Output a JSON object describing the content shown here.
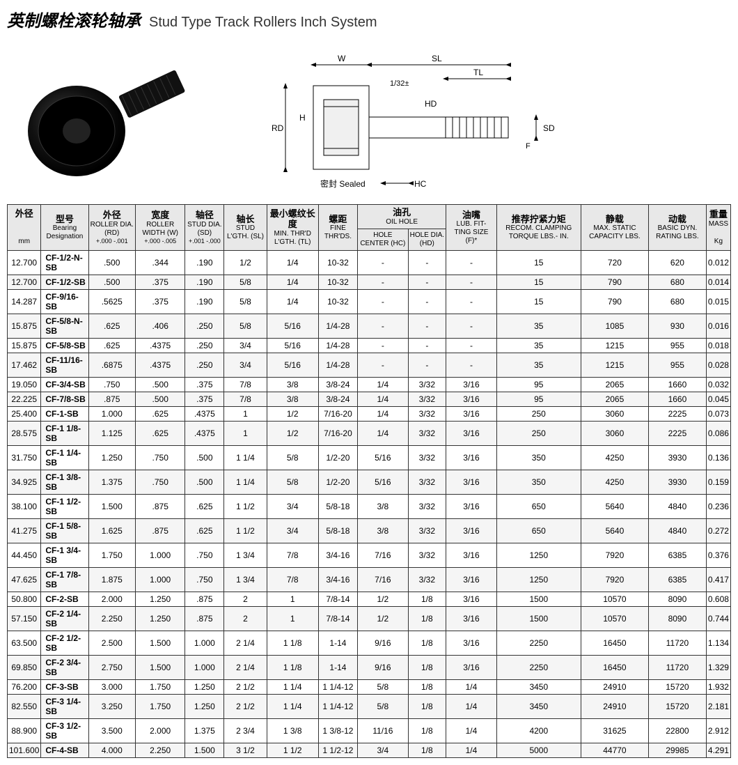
{
  "title": {
    "cn": "英制螺栓滚轮轴承",
    "en": "Stud Type Track Rollers Inch System"
  },
  "diagram_labels": {
    "W": "W",
    "SL": "SL",
    "TL": "TL",
    "HD": "HD",
    "SD": "SD",
    "F": "F",
    "RD": "RD",
    "H": "H",
    "HC": "HC",
    "gap": "1/32±",
    "sealed_cn": "密封",
    "sealed_en": "Sealed"
  },
  "headers": {
    "col1": {
      "cn": "外径",
      "en": "mm"
    },
    "col2": {
      "cn": "型号",
      "en1": "Bearing",
      "en2": "Designation"
    },
    "col3": {
      "cn": "外径",
      "en": "ROLLER DIA. (RD)",
      "tol": "+.000 -.001"
    },
    "col4": {
      "cn": "宽度",
      "en": "ROLLER WIDTH (W)",
      "tol": "+.000 -.005"
    },
    "col5": {
      "cn": "轴径",
      "en": "STUD DIA. (SD)",
      "tol": "+.001 -.000"
    },
    "col6": {
      "cn": "轴长",
      "en": "STUD L'GTH. (SL)"
    },
    "col7": {
      "cn": "最小螺纹长度",
      "en": "MIN. THR'D L'GTH. (TL)"
    },
    "col8": {
      "cn": "螺距",
      "en": "FINE THR'DS."
    },
    "col9": {
      "cn": "油孔",
      "en": "OIL HOLE",
      "sub1": "HOLE CENTER (HC)",
      "sub2": "HOLE DIA. (HD)"
    },
    "col10": {
      "cn": "油嘴",
      "en": "LUB. FIT- TING SIZE (F)*"
    },
    "col11": {
      "cn": "推荐拧紧力矩",
      "en": "RECOM. CLAMPING TORQUE LBS.- IN."
    },
    "col12": {
      "cn": "静载",
      "en": "MAX. STATIC CAPACITY LBS."
    },
    "col13": {
      "cn": "动载",
      "en": "BASIC DYN. RATING LBS."
    },
    "col14": {
      "cn": "重量",
      "en": "MASS",
      "unit": "Kg"
    }
  },
  "rows": [
    [
      "12.700",
      "CF-1/2-N-SB",
      ".500",
      ".344",
      ".190",
      "1/2",
      "1/4",
      "10-32",
      "-",
      "-",
      "-",
      "15",
      "720",
      "620",
      "0.012"
    ],
    [
      "12.700",
      "CF-1/2-SB",
      ".500",
      ".375",
      ".190",
      "5/8",
      "1/4",
      "10-32",
      "-",
      "-",
      "-",
      "15",
      "790",
      "680",
      "0.014"
    ],
    [
      "14.287",
      "CF-9/16-SB",
      ".5625",
      ".375",
      ".190",
      "5/8",
      "1/4",
      "10-32",
      "-",
      "-",
      "-",
      "15",
      "790",
      "680",
      "0.015"
    ],
    [
      "15.875",
      "CF-5/8-N-SB",
      ".625",
      ".406",
      ".250",
      "5/8",
      "5/16",
      "1/4-28",
      "-",
      "-",
      "-",
      "35",
      "1085",
      "930",
      "0.016"
    ],
    [
      "15.875",
      "CF-5/8-SB",
      ".625",
      ".4375",
      ".250",
      "3/4",
      "5/16",
      "1/4-28",
      "-",
      "-",
      "-",
      "35",
      "1215",
      "955",
      "0.018"
    ],
    [
      "17.462",
      "CF-11/16-SB",
      ".6875",
      ".4375",
      ".250",
      "3/4",
      "5/16",
      "1/4-28",
      "-",
      "-",
      "-",
      "35",
      "1215",
      "955",
      "0.028"
    ],
    [
      "19.050",
      "CF-3/4-SB",
      ".750",
      ".500",
      ".375",
      "7/8",
      "3/8",
      "3/8-24",
      "1/4",
      "3/32",
      "3/16",
      "95",
      "2065",
      "1660",
      "0.032"
    ],
    [
      "22.225",
      "CF-7/8-SB",
      ".875",
      ".500",
      ".375",
      "7/8",
      "3/8",
      "3/8-24",
      "1/4",
      "3/32",
      "3/16",
      "95",
      "2065",
      "1660",
      "0.045"
    ],
    [
      "25.400",
      "CF-1-SB",
      "1.000",
      ".625",
      ".4375",
      "1",
      "1/2",
      "7/16-20",
      "1/4",
      "3/32",
      "3/16",
      "250",
      "3060",
      "2225",
      "0.073"
    ],
    [
      "28.575",
      "CF-1 1/8-SB",
      "1.125",
      ".625",
      ".4375",
      "1",
      "1/2",
      "7/16-20",
      "1/4",
      "3/32",
      "3/16",
      "250",
      "3060",
      "2225",
      "0.086"
    ],
    [
      "31.750",
      "CF-1 1/4-SB",
      "1.250",
      ".750",
      ".500",
      "1 1/4",
      "5/8",
      "1/2-20",
      "5/16",
      "3/32",
      "3/16",
      "350",
      "4250",
      "3930",
      "0.136"
    ],
    [
      "34.925",
      "CF-1 3/8-SB",
      "1.375",
      ".750",
      ".500",
      "1 1/4",
      "5/8",
      "1/2-20",
      "5/16",
      "3/32",
      "3/16",
      "350",
      "4250",
      "3930",
      "0.159"
    ],
    [
      "38.100",
      "CF-1 1/2-SB",
      "1.500",
      ".875",
      ".625",
      "1 1/2",
      "3/4",
      "5/8-18",
      "3/8",
      "3/32",
      "3/16",
      "650",
      "5640",
      "4840",
      "0.236"
    ],
    [
      "41.275",
      "CF-1 5/8-SB",
      "1.625",
      ".875",
      ".625",
      "1 1/2",
      "3/4",
      "5/8-18",
      "3/8",
      "3/32",
      "3/16",
      "650",
      "5640",
      "4840",
      "0.272"
    ],
    [
      "44.450",
      "CF-1 3/4-SB",
      "1.750",
      "1.000",
      ".750",
      "1 3/4",
      "7/8",
      "3/4-16",
      "7/16",
      "3/32",
      "3/16",
      "1250",
      "7920",
      "6385",
      "0.376"
    ],
    [
      "47.625",
      "CF-1 7/8-SB",
      "1.875",
      "1.000",
      ".750",
      "1 3/4",
      "7/8",
      "3/4-16",
      "7/16",
      "3/32",
      "3/16",
      "1250",
      "7920",
      "6385",
      "0.417"
    ],
    [
      "50.800",
      "CF-2-SB",
      "2.000",
      "1.250",
      ".875",
      "2",
      "1",
      "7/8-14",
      "1/2",
      "1/8",
      "3/16",
      "1500",
      "10570",
      "8090",
      "0.608"
    ],
    [
      "57.150",
      "CF-2 1/4-SB",
      "2.250",
      "1.250",
      ".875",
      "2",
      "1",
      "7/8-14",
      "1/2",
      "1/8",
      "3/16",
      "1500",
      "10570",
      "8090",
      "0.744"
    ],
    [
      "63.500",
      "CF-2 1/2-SB",
      "2.500",
      "1.500",
      "1.000",
      "2 1/4",
      "1 1/8",
      "1-14",
      "9/16",
      "1/8",
      "3/16",
      "2250",
      "16450",
      "11720",
      "1.134"
    ],
    [
      "69.850",
      "CF-2 3/4-SB",
      "2.750",
      "1.500",
      "1.000",
      "2 1/4",
      "1 1/8",
      "1-14",
      "9/16",
      "1/8",
      "3/16",
      "2250",
      "16450",
      "11720",
      "1.329"
    ],
    [
      "76.200",
      "CF-3-SB",
      "3.000",
      "1.750",
      "1.250",
      "2 1/2",
      "1 1/4",
      "1 1/4-12",
      "5/8",
      "1/8",
      "1/4",
      "3450",
      "24910",
      "15720",
      "1.932"
    ],
    [
      "82.550",
      "CF-3 1/4-SB",
      "3.250",
      "1.750",
      "1.250",
      "2 1/2",
      "1 1/4",
      "1 1/4-12",
      "5/8",
      "1/8",
      "1/4",
      "3450",
      "24910",
      "15720",
      "2.181"
    ],
    [
      "88.900",
      "CF-3 1/2-SB",
      "3.500",
      "2.000",
      "1.375",
      "2 3/4",
      "1 3/8",
      "1 3/8-12",
      "11/16",
      "1/8",
      "1/4",
      "4200",
      "31625",
      "22800",
      "2.912"
    ],
    [
      "101.600",
      "CF-4-SB",
      "4.000",
      "2.250",
      "1.500",
      "3 1/2",
      "1 1/2",
      "1 1/2-12",
      "3/4",
      "1/8",
      "1/4",
      "5000",
      "44770",
      "29985",
      "4.291"
    ]
  ],
  "colors": {
    "header_bg": "#e8e8e8",
    "border": "#333333"
  }
}
